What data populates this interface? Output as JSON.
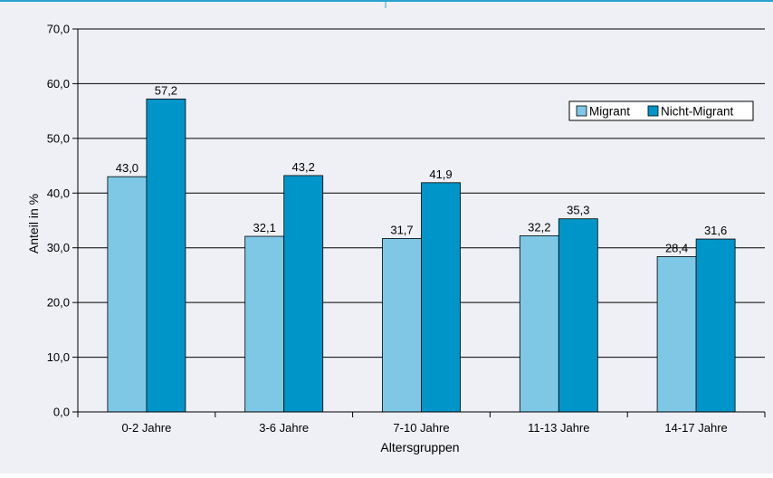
{
  "chart_data": {
    "type": "bar",
    "title": "",
    "xlabel": "Altersgruppen",
    "ylabel": "Anteil in %",
    "ylim": [
      0,
      70
    ],
    "yticks": [
      "0,0",
      "10,0",
      "20,0",
      "30,0",
      "40,0",
      "50,0",
      "60,0",
      "70,0"
    ],
    "grid": true,
    "legend_position": "top-right",
    "categories": [
      "0-2 Jahre",
      "3-6 Jahre",
      "7-10 Jahre",
      "11-13 Jahre",
      "14-17 Jahre"
    ],
    "series": [
      {
        "name": "Migrant",
        "color": "#7ec8e6",
        "values": [
          43.0,
          32.1,
          31.7,
          32.2,
          28.4
        ],
        "labels": [
          "43,0",
          "32,1",
          "31,7",
          "32,2",
          "28,4"
        ]
      },
      {
        "name": "Nicht-Migrant",
        "color": "#0095c8",
        "values": [
          57.2,
          43.2,
          41.9,
          35.3,
          31.6
        ],
        "labels": [
          "57,2",
          "43,2",
          "41,9",
          "35,3",
          "31,6"
        ]
      }
    ]
  },
  "colors": {
    "background": "#eef0f5",
    "top_rule": "#2aa2cf",
    "grid": "#000000"
  }
}
